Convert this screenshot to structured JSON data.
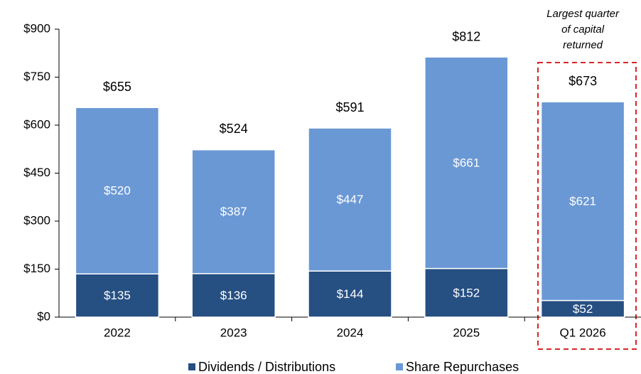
{
  "chart_data": {
    "type": "stacked-bar",
    "categories": [
      "2022",
      "2023",
      "2024",
      "2025",
      "Q1 2026"
    ],
    "series": [
      {
        "name": "Dividends / Distributions",
        "color": "#264f82",
        "values": [
          135,
          136,
          144,
          152,
          52
        ],
        "value_labels": [
          "$135",
          "$136",
          "$144",
          "$152",
          "$52"
        ]
      },
      {
        "name": "Share Repurchases",
        "color": "#6a98d4",
        "values": [
          520,
          387,
          447,
          661,
          621
        ],
        "value_labels": [
          "$520",
          "$387",
          "$447",
          "$661",
          "$621"
        ]
      }
    ],
    "totals": [
      655,
      524,
      591,
      812,
      673
    ],
    "total_labels": [
      "$655",
      "$524",
      "$591",
      "$812",
      "$673"
    ],
    "annotation": [
      "Largest quarter",
      "of capital",
      "returned"
    ],
    "ylim": [
      0,
      900
    ],
    "yticks": [
      {
        "value": 0,
        "label": "$0"
      },
      {
        "value": 150,
        "label": "$150"
      },
      {
        "value": 300,
        "label": "$300"
      },
      {
        "value": 450,
        "label": "$450"
      },
      {
        "value": 600,
        "label": "$600"
      },
      {
        "value": 750,
        "label": "$750"
      },
      {
        "value": 900,
        "label": "$900"
      }
    ],
    "legend": "bottom"
  }
}
